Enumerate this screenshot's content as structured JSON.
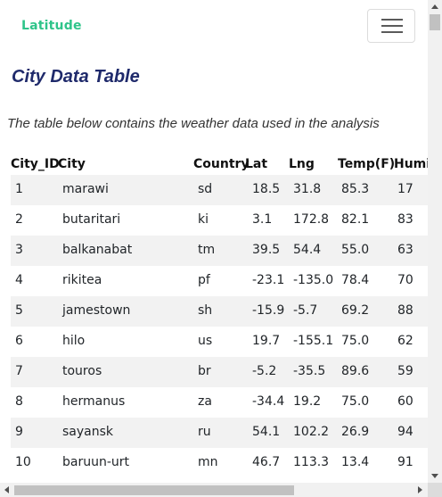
{
  "navbar": {
    "brand": "Latitude",
    "toggler_icon": "hamburger-menu-icon"
  },
  "page": {
    "title": "City Data Table",
    "caption": "The table below contains the weather data used in the analysis"
  },
  "table": {
    "headers": [
      "City_ID",
      "City",
      "Country",
      "Lat",
      "Lng",
      "Temp(F)",
      "Humi"
    ],
    "rows": [
      [
        "1",
        "marawi",
        "sd",
        "18.5",
        "31.8",
        "85.3",
        "17"
      ],
      [
        "2",
        "butaritari",
        "ki",
        "3.1",
        "172.8",
        "82.1",
        "83"
      ],
      [
        "3",
        "balkanabat",
        "tm",
        "39.5",
        "54.4",
        "55.0",
        "63"
      ],
      [
        "4",
        "rikitea",
        "pf",
        "-23.1",
        "-135.0",
        "78.4",
        "70"
      ],
      [
        "5",
        "jamestown",
        "sh",
        "-15.9",
        "-5.7",
        "69.2",
        "88"
      ],
      [
        "6",
        "hilo",
        "us",
        "19.7",
        "-155.1",
        "75.0",
        "62"
      ],
      [
        "7",
        "touros",
        "br",
        "-5.2",
        "-35.5",
        "89.6",
        "59"
      ],
      [
        "8",
        "hermanus",
        "za",
        "-34.4",
        "19.2",
        "75.0",
        "60"
      ],
      [
        "9",
        "sayansk",
        "ru",
        "54.1",
        "102.2",
        "26.9",
        "94"
      ],
      [
        "10",
        "baruun-urt",
        "mn",
        "46.7",
        "113.3",
        "13.4",
        "91"
      ]
    ]
  },
  "colors": {
    "brand": "#2fc48a",
    "title": "#1f2a6b",
    "stripe": "#f2f2f2"
  }
}
